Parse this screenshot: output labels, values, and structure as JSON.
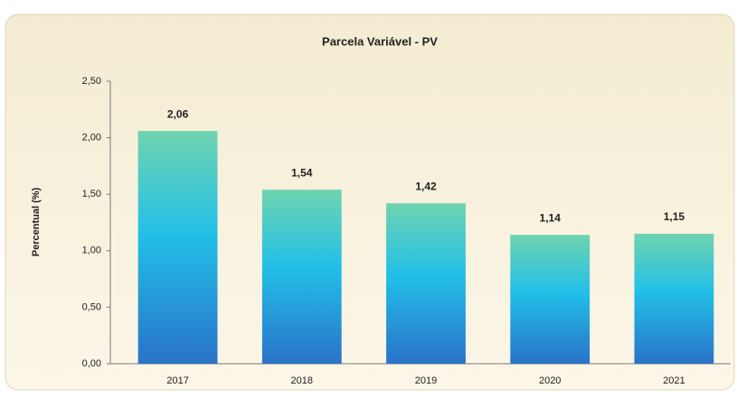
{
  "chart_data": {
    "type": "bar",
    "title": "Parcela Variável - PV",
    "y_label": "Percentual (%)",
    "categories": [
      "2017",
      "2018",
      "2019",
      "2020",
      "2021"
    ],
    "values": [
      2.06,
      1.54,
      1.42,
      1.14,
      1.15
    ],
    "value_labels": [
      "2,06",
      "1,54",
      "1,42",
      "1,14",
      "1,15"
    ],
    "ylim": [
      0,
      2.5
    ],
    "yticks": [
      {
        "value": 0,
        "label": "0,00"
      },
      {
        "value": 0.5,
        "label": "0,50"
      },
      {
        "value": 1,
        "label": "1,00"
      },
      {
        "value": 1.5,
        "label": "1,50"
      },
      {
        "value": 2,
        "label": "2,00"
      },
      {
        "value": 2.5,
        "label": "2,50"
      }
    ],
    "grid": false
  }
}
